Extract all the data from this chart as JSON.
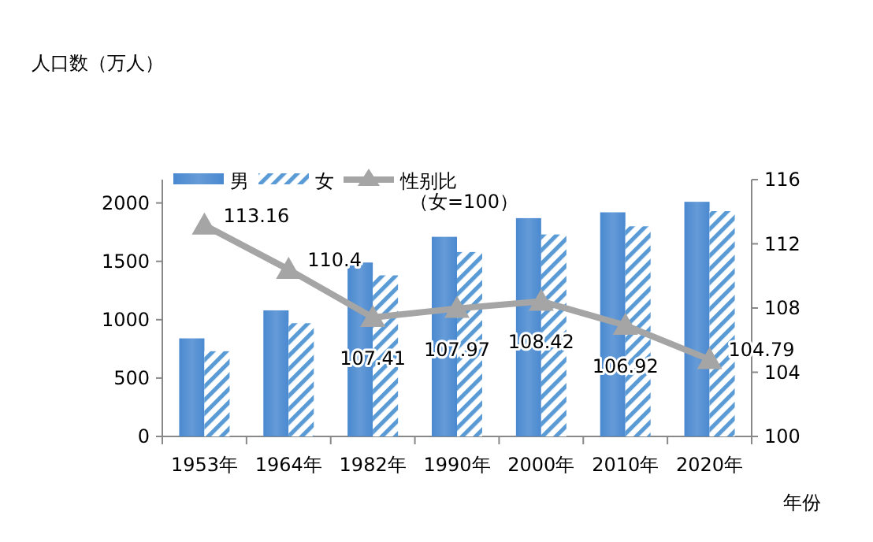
{
  "chart_data": {
    "type": "bar",
    "ylabel": "人口数（万人）",
    "xlabel": "年份",
    "categories": [
      "1953年",
      "1964年",
      "1982年",
      "1990年",
      "2000年",
      "2010年",
      "2020年"
    ],
    "series": [
      {
        "name": "男",
        "color": "#4a89d0",
        "values": [
          840,
          1080,
          1490,
          1710,
          1870,
          1920,
          2010
        ]
      },
      {
        "name": "女",
        "color": "#5b9bd5",
        "values": [
          730,
          970,
          1380,
          1580,
          1730,
          1800,
          1930
        ]
      },
      {
        "name": "性别比（女=100）",
        "type": "line",
        "axis": "y2",
        "color": "#a5a5a5",
        "marker": "triangle",
        "values": [
          113.16,
          110.4,
          107.41,
          107.97,
          108.42,
          106.92,
          104.79
        ],
        "value_labels": [
          "113.16",
          "110.4",
          "107.41",
          "107.97",
          "108.42",
          "106.92",
          "104.79"
        ]
      }
    ],
    "ylim": [
      0,
      2200
    ],
    "yticks": [
      0,
      500,
      1000,
      1500,
      2000
    ],
    "y2lim": [
      100,
      116
    ],
    "y2ticks": [
      100,
      104,
      108,
      112,
      116
    ],
    "legend": "top",
    "grid": false
  }
}
